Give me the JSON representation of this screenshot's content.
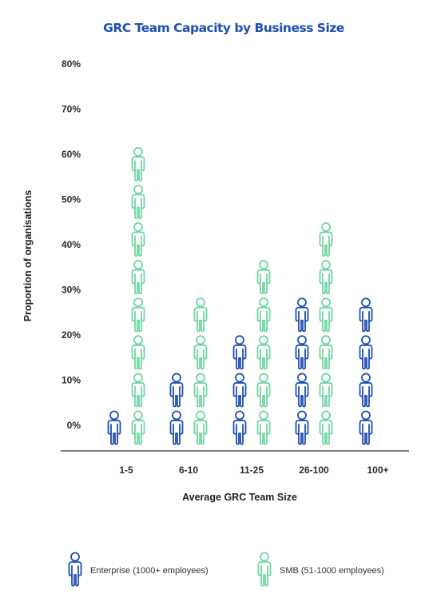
{
  "chart_data": {
    "type": "pictograph",
    "title": "GRC Team Capacity by Business Size",
    "xlabel": "Average GRC Team Size",
    "ylabel": "Proportion of organisations",
    "y_ticks": [
      "0%",
      "10%",
      "20%",
      "30%",
      "40%",
      "50%",
      "60%",
      "70%",
      "80%"
    ],
    "ylim": [
      0,
      80
    ],
    "categories": [
      "1-5",
      "6-10",
      "11-25",
      "26-100",
      "100+"
    ],
    "series": [
      {
        "name": "Enterprise (1000+ employees)",
        "color": "#1f4fb2",
        "values": [
          5,
          13,
          21,
          30,
          30
        ]
      },
      {
        "name": "SMB (51-1000 employees)",
        "color": "#6fd6a0",
        "values": [
          70,
          30,
          38,
          46,
          0
        ]
      }
    ],
    "legend_position": "bottom",
    "icon": "person-icon"
  }
}
